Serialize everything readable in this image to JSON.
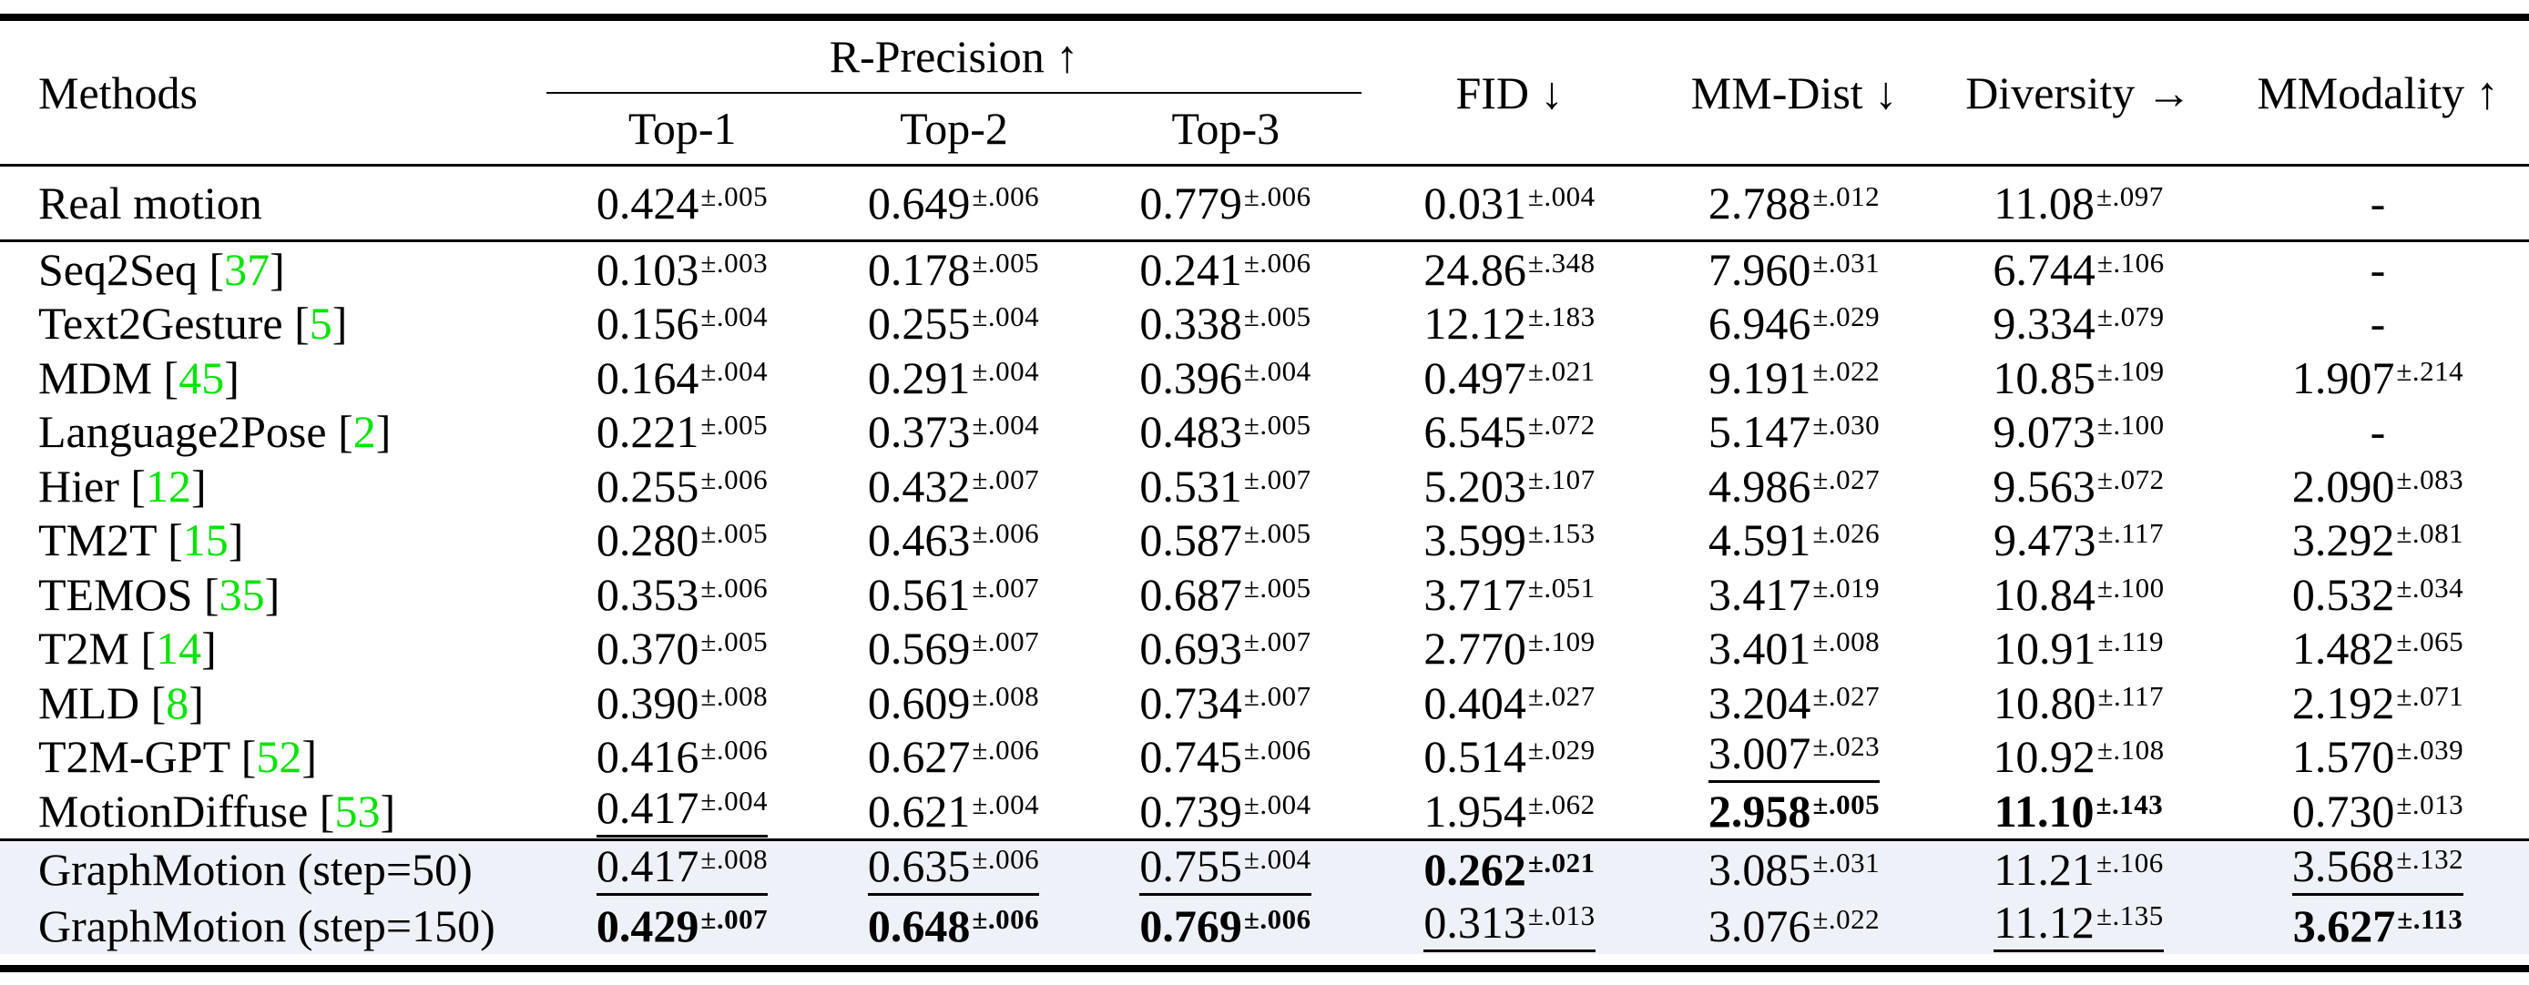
{
  "header": {
    "methods": "Methods",
    "r_precision": "R-Precision ↑",
    "top1": "Top-1",
    "top2": "Top-2",
    "top3": "Top-3",
    "fid": "FID ↓",
    "mm_dist": "MM-Dist ↓",
    "diversity": "Diversity →",
    "mmodality": "MModality ↑"
  },
  "colors": {
    "citation_green": "#00e400",
    "highlight_row": "#eef1f8",
    "text": "#000000"
  },
  "table": {
    "rows": [
      {
        "section": "real",
        "method": "Real motion",
        "cite": null,
        "values": [
          {
            "v": "0.424",
            "pm": "±.005"
          },
          {
            "v": "0.649",
            "pm": "±.006"
          },
          {
            "v": "0.779",
            "pm": "±.006"
          },
          {
            "v": "0.031",
            "pm": "±.004"
          },
          {
            "v": "2.788",
            "pm": "±.012"
          },
          {
            "v": "11.08",
            "pm": "±.097"
          },
          {
            "v": "-"
          }
        ]
      },
      {
        "section": "baseline",
        "method": "Seq2Seq",
        "cite": "37",
        "values": [
          {
            "v": "0.103",
            "pm": "±.003"
          },
          {
            "v": "0.178",
            "pm": "±.005"
          },
          {
            "v": "0.241",
            "pm": "±.006"
          },
          {
            "v": "24.86",
            "pm": "±.348"
          },
          {
            "v": "7.960",
            "pm": "±.031"
          },
          {
            "v": "6.744",
            "pm": "±.106"
          },
          {
            "v": "-"
          }
        ]
      },
      {
        "section": "baseline",
        "method": "Text2Gesture",
        "cite": "5",
        "values": [
          {
            "v": "0.156",
            "pm": "±.004"
          },
          {
            "v": "0.255",
            "pm": "±.004"
          },
          {
            "v": "0.338",
            "pm": "±.005"
          },
          {
            "v": "12.12",
            "pm": "±.183"
          },
          {
            "v": "6.946",
            "pm": "±.029"
          },
          {
            "v": "9.334",
            "pm": "±.079"
          },
          {
            "v": "-"
          }
        ]
      },
      {
        "section": "baseline",
        "method": "MDM",
        "cite": "45",
        "values": [
          {
            "v": "0.164",
            "pm": "±.004"
          },
          {
            "v": "0.291",
            "pm": "±.004"
          },
          {
            "v": "0.396",
            "pm": "±.004"
          },
          {
            "v": "0.497",
            "pm": "±.021"
          },
          {
            "v": "9.191",
            "pm": "±.022"
          },
          {
            "v": "10.85",
            "pm": "±.109"
          },
          {
            "v": "1.907",
            "pm": "±.214"
          }
        ]
      },
      {
        "section": "baseline",
        "method": "Language2Pose",
        "cite": "2",
        "values": [
          {
            "v": "0.221",
            "pm": "±.005"
          },
          {
            "v": "0.373",
            "pm": "±.004"
          },
          {
            "v": "0.483",
            "pm": "±.005"
          },
          {
            "v": "6.545",
            "pm": "±.072"
          },
          {
            "v": "5.147",
            "pm": "±.030"
          },
          {
            "v": "9.073",
            "pm": "±.100"
          },
          {
            "v": "-"
          }
        ]
      },
      {
        "section": "baseline",
        "method": "Hier",
        "cite": "12",
        "values": [
          {
            "v": "0.255",
            "pm": "±.006"
          },
          {
            "v": "0.432",
            "pm": "±.007"
          },
          {
            "v": "0.531",
            "pm": "±.007"
          },
          {
            "v": "5.203",
            "pm": "±.107"
          },
          {
            "v": "4.986",
            "pm": "±.027"
          },
          {
            "v": "9.563",
            "pm": "±.072"
          },
          {
            "v": "2.090",
            "pm": "±.083"
          }
        ]
      },
      {
        "section": "baseline",
        "method": "TM2T",
        "cite": "15",
        "values": [
          {
            "v": "0.280",
            "pm": "±.005"
          },
          {
            "v": "0.463",
            "pm": "±.006"
          },
          {
            "v": "0.587",
            "pm": "±.005"
          },
          {
            "v": "3.599",
            "pm": "±.153"
          },
          {
            "v": "4.591",
            "pm": "±.026"
          },
          {
            "v": "9.473",
            "pm": "±.117"
          },
          {
            "v": "3.292",
            "pm": "±.081"
          }
        ]
      },
      {
        "section": "baseline",
        "method": "TEMOS",
        "cite": "35",
        "values": [
          {
            "v": "0.353",
            "pm": "±.006"
          },
          {
            "v": "0.561",
            "pm": "±.007"
          },
          {
            "v": "0.687",
            "pm": "±.005"
          },
          {
            "v": "3.717",
            "pm": "±.051"
          },
          {
            "v": "3.417",
            "pm": "±.019"
          },
          {
            "v": "10.84",
            "pm": "±.100"
          },
          {
            "v": "0.532",
            "pm": "±.034"
          }
        ]
      },
      {
        "section": "baseline",
        "method": "T2M",
        "cite": "14",
        "values": [
          {
            "v": "0.370",
            "pm": "±.005"
          },
          {
            "v": "0.569",
            "pm": "±.007"
          },
          {
            "v": "0.693",
            "pm": "±.007"
          },
          {
            "v": "2.770",
            "pm": "±.109"
          },
          {
            "v": "3.401",
            "pm": "±.008"
          },
          {
            "v": "10.91",
            "pm": "±.119"
          },
          {
            "v": "1.482",
            "pm": "±.065"
          }
        ]
      },
      {
        "section": "baseline",
        "method": "MLD",
        "cite": "8",
        "values": [
          {
            "v": "0.390",
            "pm": "±.008"
          },
          {
            "v": "0.609",
            "pm": "±.008"
          },
          {
            "v": "0.734",
            "pm": "±.007"
          },
          {
            "v": "0.404",
            "pm": "±.027"
          },
          {
            "v": "3.204",
            "pm": "±.027"
          },
          {
            "v": "10.80",
            "pm": "±.117"
          },
          {
            "v": "2.192",
            "pm": "±.071"
          }
        ]
      },
      {
        "section": "baseline",
        "method": "T2M-GPT",
        "cite": "52",
        "values": [
          {
            "v": "0.416",
            "pm": "±.006"
          },
          {
            "v": "0.627",
            "pm": "±.006"
          },
          {
            "v": "0.745",
            "pm": "±.006"
          },
          {
            "v": "0.514",
            "pm": "±.029"
          },
          {
            "v": "3.007",
            "pm": "±.023",
            "em": "underline"
          },
          {
            "v": "10.92",
            "pm": "±.108"
          },
          {
            "v": "1.570",
            "pm": "±.039"
          }
        ]
      },
      {
        "section": "baseline",
        "method": "MotionDiffuse",
        "cite": "53",
        "values": [
          {
            "v": "0.417",
            "pm": "±.004",
            "em": "underline"
          },
          {
            "v": "0.621",
            "pm": "±.004"
          },
          {
            "v": "0.739",
            "pm": "±.004"
          },
          {
            "v": "1.954",
            "pm": "±.062"
          },
          {
            "v": "2.958",
            "pm": "±.005",
            "em": "bold"
          },
          {
            "v": "11.10",
            "pm": "±.143",
            "em": "bold"
          },
          {
            "v": "0.730",
            "pm": "±.013"
          }
        ]
      },
      {
        "section": "ours",
        "method": "GraphMotion (step=50)",
        "cite": null,
        "values": [
          {
            "v": "0.417",
            "pm": "±.008",
            "em": "underline"
          },
          {
            "v": "0.635",
            "pm": "±.006",
            "em": "underline"
          },
          {
            "v": "0.755",
            "pm": "±.004",
            "em": "underline"
          },
          {
            "v": "0.262",
            "pm": "±.021",
            "em": "bold"
          },
          {
            "v": "3.085",
            "pm": "±.031"
          },
          {
            "v": "11.21",
            "pm": "±.106"
          },
          {
            "v": "3.568",
            "pm": "±.132",
            "em": "underline"
          }
        ]
      },
      {
        "section": "ours",
        "method": "GraphMotion (step=150)",
        "cite": null,
        "values": [
          {
            "v": "0.429",
            "pm": "±.007",
            "em": "bold"
          },
          {
            "v": "0.648",
            "pm": "±.006",
            "em": "bold"
          },
          {
            "v": "0.769",
            "pm": "±.006",
            "em": "bold"
          },
          {
            "v": "0.313",
            "pm": "±.013",
            "em": "underline"
          },
          {
            "v": "3.076",
            "pm": "±.022"
          },
          {
            "v": "11.12",
            "pm": "±.135",
            "em": "underline"
          },
          {
            "v": "3.627",
            "pm": "±.113",
            "em": "bold"
          }
        ]
      }
    ]
  }
}
